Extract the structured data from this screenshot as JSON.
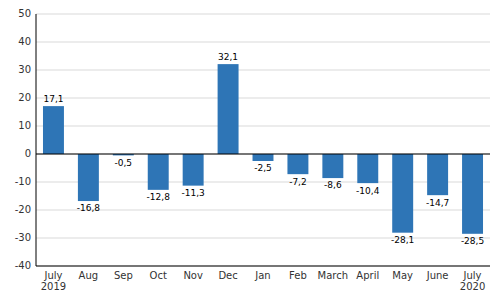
{
  "chart_data": {
    "type": "bar",
    "categories": [
      "July\n2019",
      "Aug",
      "Sep",
      "Oct",
      "Nov",
      "Dec",
      "Jan",
      "Feb",
      "March",
      "April",
      "May",
      "June",
      "July\n2020"
    ],
    "values": [
      17.1,
      -16.8,
      -0.5,
      -12.8,
      -11.3,
      32.1,
      -2.5,
      -7.2,
      -8.6,
      -10.4,
      -28.1,
      -14.7,
      -28.5
    ],
    "value_labels": [
      "17,1",
      "-16,8",
      "-0,5",
      "-12,8",
      "-11,3",
      "32,1",
      "-2,5",
      "-7,2",
      "-8,6",
      "-10,4",
      "-28,1",
      "-14,7",
      "-28,5"
    ],
    "data_labels": true,
    "color": "#2e75b6",
    "ylim": [
      -40,
      50
    ],
    "yticks": [
      -40,
      -30,
      -20,
      -10,
      0,
      10,
      20,
      30,
      40,
      50
    ],
    "grid": true
  }
}
